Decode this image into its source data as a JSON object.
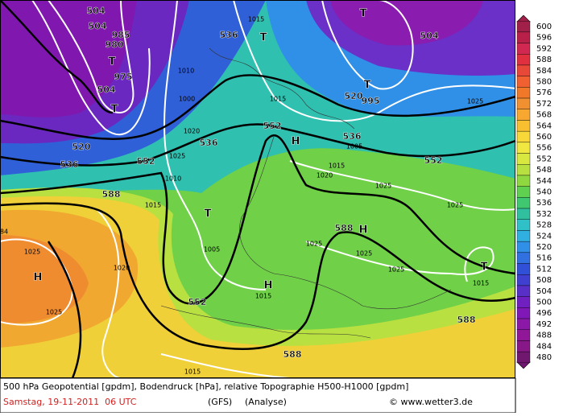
{
  "map": {
    "labels": [
      "504",
      "504",
      "985",
      "980",
      "T",
      "975",
      "504",
      "T",
      "1010",
      "1000",
      "536",
      "T",
      "1015",
      "T",
      "504",
      "T",
      "520",
      "995",
      "1015",
      "1025",
      "552",
      "H",
      "536",
      "1005",
      "1015",
      "552",
      "520",
      "536",
      "552",
      "536",
      "1020",
      "1025",
      "1010",
      "1015",
      "588",
      "T",
      "1020",
      "1025",
      "1025",
      "588",
      "H",
      "1025",
      "1025",
      "1025",
      "T",
      "1015",
      "1025",
      "H",
      "1020",
      "1025",
      "1005",
      "552",
      "H",
      "1015",
      "588",
      "588",
      "1015",
      "84"
    ]
  },
  "colorbar": {
    "levels": [
      600,
      596,
      592,
      588,
      584,
      580,
      576,
      572,
      568,
      564,
      560,
      556,
      552,
      548,
      544,
      540,
      536,
      532,
      528,
      524,
      520,
      516,
      512,
      508,
      504,
      500,
      496,
      492,
      488,
      484,
      480
    ],
    "colors": [
      "#a0204a",
      "#b8204a",
      "#d02850",
      "#e03040",
      "#e84838",
      "#f06030",
      "#f07828",
      "#f09030",
      "#f8a830",
      "#f8c030",
      "#f8d838",
      "#f0e840",
      "#d8e840",
      "#b8e040",
      "#90d840",
      "#60d050",
      "#40c870",
      "#30c0a0",
      "#30c0c8",
      "#30b0e0",
      "#3090e8",
      "#3070e0",
      "#3050d8",
      "#4040d0",
      "#5830c8",
      "#7020c0",
      "#8018b8",
      "#8c18a8",
      "#901898",
      "#881888",
      "#701870"
    ]
  },
  "footer": {
    "description": "500 hPa Geopotential [gpdm], Bodendruck [hPa], relative Topographie H500-H1000 [gpdm]",
    "date": "Samstag, 19-11-2011  06 UTC",
    "model": "(GFS)",
    "run": "(Analyse)",
    "credit": "© www.wetter3.de"
  }
}
